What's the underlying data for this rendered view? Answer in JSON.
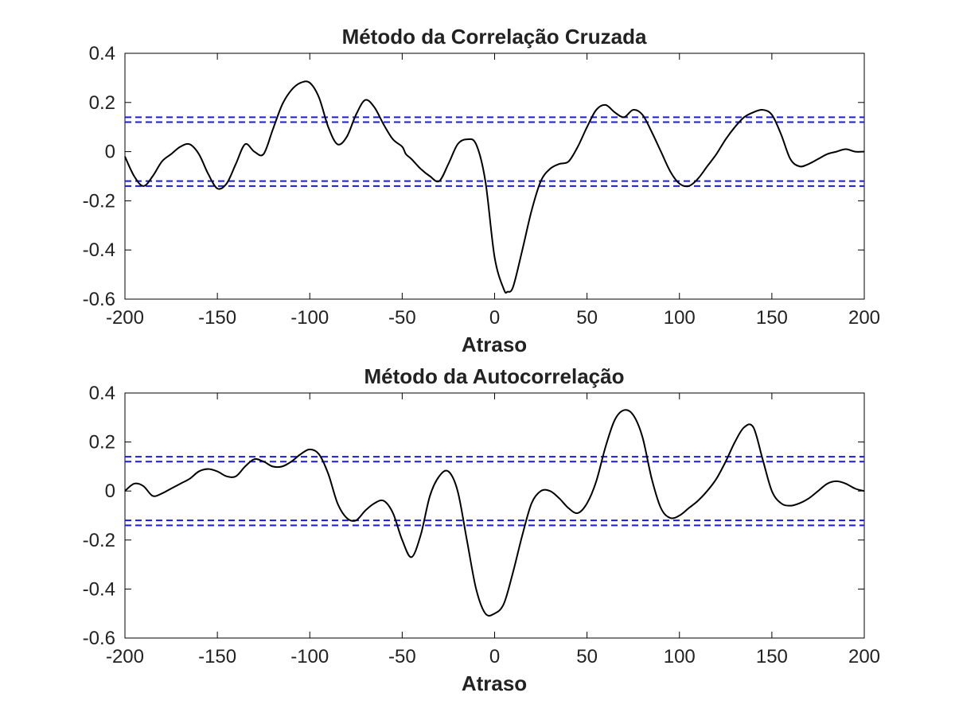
{
  "chart_data": [
    {
      "type": "line",
      "title": "Método da Correlação Cruzada",
      "xlabel": "Atraso",
      "ylabel": "",
      "xlim": [
        -200,
        200
      ],
      "ylim": [
        -0.6,
        0.4
      ],
      "xticks": [
        -200,
        -150,
        -100,
        -50,
        0,
        50,
        100,
        150,
        200
      ],
      "xtick_labels": [
        "-200",
        "-150",
        "-100",
        "-50",
        "0",
        "50",
        "100",
        "150",
        "200"
      ],
      "yticks": [
        0.4,
        0.2,
        0,
        -0.2,
        -0.4,
        -0.6
      ],
      "ytick_labels": [
        "0.4",
        "0.2",
        "0",
        "-0.2",
        "-0.4",
        "-0.6"
      ],
      "grid": false,
      "line_color": "#000000",
      "band_color": "#1a1ae6",
      "confidence_bounds": [
        0.14,
        0.12,
        -0.12,
        -0.14
      ],
      "series": [
        {
          "x": [
            -200,
            -195,
            -190,
            -185,
            -180,
            -175,
            -170,
            -165,
            -160,
            -155,
            -150,
            -145,
            -140,
            -135,
            -130,
            -125,
            -120,
            -115,
            -110,
            -105,
            -100,
            -95,
            -90,
            -85,
            -80,
            -75,
            -70,
            -65,
            -60,
            -55,
            -50,
            -48,
            -45,
            -40,
            -35,
            -30,
            -25,
            -20,
            -15,
            -10,
            -5,
            0,
            5,
            7,
            10,
            15,
            20,
            25,
            30,
            35,
            40,
            45,
            50,
            55,
            60,
            65,
            70,
            75,
            80,
            85,
            90,
            95,
            100,
            105,
            110,
            115,
            120,
            125,
            130,
            135,
            140,
            145,
            150,
            155,
            160,
            165,
            170,
            175,
            180,
            185,
            190,
            195,
            200
          ],
          "y": [
            -0.02,
            -0.1,
            -0.14,
            -0.1,
            -0.04,
            -0.01,
            0.02,
            0.03,
            -0.01,
            -0.09,
            -0.15,
            -0.13,
            -0.05,
            0.03,
            0.0,
            -0.01,
            0.09,
            0.19,
            0.25,
            0.28,
            0.28,
            0.22,
            0.1,
            0.03,
            0.06,
            0.15,
            0.21,
            0.18,
            0.11,
            0.05,
            0.02,
            -0.01,
            -0.03,
            -0.07,
            -0.1,
            -0.12,
            -0.05,
            0.03,
            0.05,
            0.03,
            -0.12,
            -0.43,
            -0.56,
            -0.57,
            -0.55,
            -0.4,
            -0.24,
            -0.12,
            -0.07,
            -0.05,
            -0.04,
            0.02,
            0.1,
            0.17,
            0.19,
            0.16,
            0.14,
            0.17,
            0.15,
            0.08,
            0.0,
            -0.08,
            -0.13,
            -0.14,
            -0.11,
            -0.06,
            -0.01,
            0.05,
            0.1,
            0.14,
            0.16,
            0.17,
            0.15,
            0.07,
            -0.03,
            -0.06,
            -0.05,
            -0.03,
            -0.01,
            0.0,
            0.01,
            0.0,
            0.0
          ]
        }
      ]
    },
    {
      "type": "line",
      "title": "Método da Autocorrelação",
      "xlabel": "Atraso",
      "ylabel": "",
      "xlim": [
        -200,
        200
      ],
      "ylim": [
        -0.6,
        0.4
      ],
      "xticks": [
        -200,
        -150,
        -100,
        -50,
        0,
        50,
        100,
        150,
        200
      ],
      "xtick_labels": [
        "-200",
        "-150",
        "-100",
        "-50",
        "0",
        "50",
        "100",
        "150",
        "200"
      ],
      "yticks": [
        0.4,
        0.2,
        0,
        -0.2,
        -0.4,
        -0.6
      ],
      "ytick_labels": [
        "0.4",
        "0.2",
        "0",
        "-0.2",
        "-0.4",
        "-0.6"
      ],
      "grid": false,
      "line_color": "#000000",
      "band_color": "#1a1ae6",
      "confidence_bounds": [
        0.14,
        0.12,
        -0.12,
        -0.14
      ],
      "series": [
        {
          "x": [
            -200,
            -195,
            -190,
            -185,
            -180,
            -175,
            -170,
            -165,
            -160,
            -155,
            -150,
            -145,
            -140,
            -135,
            -130,
            -125,
            -120,
            -115,
            -110,
            -105,
            -100,
            -95,
            -90,
            -85,
            -80,
            -75,
            -70,
            -65,
            -60,
            -55,
            -50,
            -45,
            -40,
            -35,
            -30,
            -25,
            -20,
            -15,
            -10,
            -5,
            0,
            5,
            10,
            15,
            20,
            25,
            30,
            35,
            40,
            45,
            50,
            55,
            60,
            65,
            70,
            75,
            80,
            85,
            90,
            95,
            100,
            105,
            110,
            115,
            120,
            125,
            130,
            135,
            140,
            145,
            150,
            155,
            160,
            165,
            170,
            175,
            180,
            185,
            190,
            195,
            200
          ],
          "y": [
            0.0,
            0.03,
            0.02,
            -0.02,
            -0.01,
            0.01,
            0.03,
            0.05,
            0.08,
            0.09,
            0.08,
            0.06,
            0.06,
            0.1,
            0.13,
            0.12,
            0.1,
            0.1,
            0.12,
            0.15,
            0.17,
            0.15,
            0.07,
            -0.05,
            -0.11,
            -0.12,
            -0.08,
            -0.05,
            -0.04,
            -0.09,
            -0.2,
            -0.27,
            -0.18,
            -0.02,
            0.06,
            0.08,
            0.0,
            -0.2,
            -0.4,
            -0.5,
            -0.5,
            -0.46,
            -0.33,
            -0.18,
            -0.05,
            0.0,
            0.0,
            -0.03,
            -0.07,
            -0.09,
            -0.05,
            0.04,
            0.18,
            0.29,
            0.33,
            0.31,
            0.22,
            0.05,
            -0.07,
            -0.11,
            -0.1,
            -0.07,
            -0.04,
            0.0,
            0.05,
            0.12,
            0.2,
            0.26,
            0.26,
            0.13,
            0.0,
            -0.05,
            -0.06,
            -0.05,
            -0.03,
            0.0,
            0.03,
            0.04,
            0.03,
            0.01,
            0.0
          ]
        }
      ]
    }
  ]
}
